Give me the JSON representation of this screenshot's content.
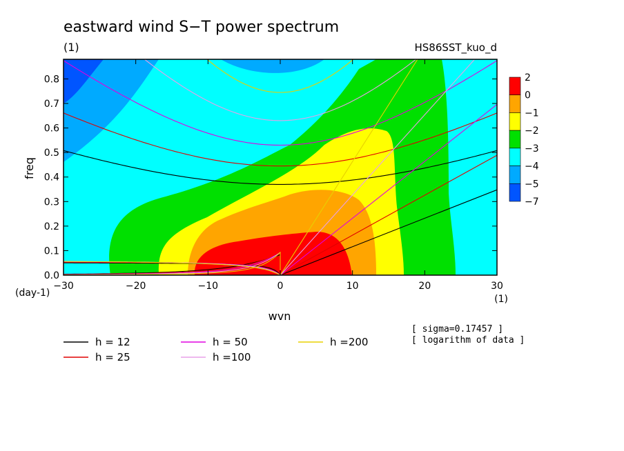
{
  "chart_data": {
    "type": "heatmap",
    "title": "eastward wind S−T power spectrum",
    "subtitle_left": "(1)",
    "subtitle_right": "HS86SST_kuo_d",
    "xlabel": "wvn",
    "ylabel": "freq",
    "x_unit": "(1)",
    "y_unit": "(day-1)",
    "xlim": [
      -30,
      30
    ],
    "ylim": [
      0,
      0.88
    ],
    "x_ticks": [
      -30,
      -20,
      -10,
      0,
      10,
      20,
      30
    ],
    "x_tick_labels": [
      "−30",
      "−20",
      "−10",
      "0",
      "10",
      "20",
      "30"
    ],
    "y_ticks": [
      0,
      0.1,
      0.2,
      0.3,
      0.4,
      0.5,
      0.6,
      0.7,
      0.8
    ],
    "y_tick_labels": [
      "0.0",
      "0.1",
      "0.2",
      "0.3",
      "0.4",
      "0.5",
      "0.6",
      "0.7",
      "0.8"
    ],
    "colorbar": {
      "levels": [
        "2",
        "0",
        "−1",
        "−2",
        "−3",
        "−4",
        "−5",
        "−7"
      ],
      "colors": [
        "#ff0000",
        "#ffa500",
        "#ffff00",
        "#00e000",
        "#00ffff",
        "#00aaff",
        "#0055ff"
      ]
    },
    "notes": [
      "[ sigma=0.17457 ]",
      "[ logarithm of data ]"
    ],
    "dispersion_curves": [
      {
        "name": "h = 12",
        "h": 12,
        "color": "#000000"
      },
      {
        "name": "h = 25",
        "h": 25,
        "color": "#e00000"
      },
      {
        "name": "h = 50",
        "h": 50,
        "color": "#e000e0"
      },
      {
        "name": "h =100",
        "h": 100,
        "color": "#e8a0e8"
      },
      {
        "name": "h =200",
        "h": 200,
        "color": "#e8d000"
      }
    ],
    "kelvin_wave_slope_per_h": [
      0.0116,
      0.0163,
      0.0232,
      0.0327,
      0.0463
    ],
    "rossby_asymptote": [
      0.052,
      0.055,
      0.057,
      0.058,
      0.058
    ],
    "ig_min_freq": [
      0.37,
      0.445,
      0.53,
      0.63,
      0.745
    ]
  }
}
